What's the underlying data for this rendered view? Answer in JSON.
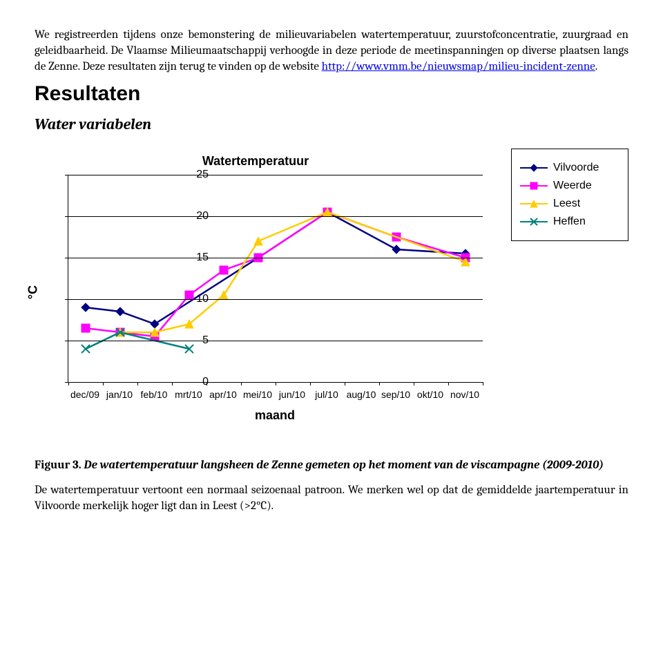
{
  "para1": "We registreerden tijdens onze bemonstering de milieuvariabelen watertemperatuur, zuurstofconcentratie, zuurgraad en geleidbaarheid. De Vlaamse Milieumaatschappij verhoogde in deze periode de meetinspanningen op diverse plaatsen langs de Zenne. Deze resultaten zijn terug te vinden op de website ",
  "para1_site_prefix": "Deze resultaten zijn terug te vinden op de website",
  "link_text": "http://www.vmm.be/nieuwsmap/milieu-incident-zenne",
  "section_title": "Resultaten",
  "subsection": "Water variabelen",
  "chart": {
    "title": "Watertemperatuur",
    "y_title": "°C",
    "x_title": "maand",
    "ylim": [
      0,
      25
    ],
    "ytick_step": 5,
    "grid_color": "#000000",
    "categories": [
      "dec/09",
      "jan/10",
      "feb/10",
      "mrt/10",
      "apr/10",
      "mei/10",
      "jun/10",
      "jul/10",
      "aug/10",
      "sep/10",
      "okt/10",
      "nov/10"
    ],
    "series": [
      {
        "name": "Vilvoorde",
        "color": "#000080",
        "marker": "diamond",
        "values": [
          9,
          8.5,
          7,
          null,
          null,
          15,
          null,
          20.5,
          null,
          16,
          null,
          15.5
        ]
      },
      {
        "name": "Weerde",
        "color": "#ff00ff",
        "marker": "square",
        "values": [
          6.5,
          6,
          5.5,
          10.5,
          13.5,
          15,
          null,
          20.5,
          null,
          17.5,
          null,
          15
        ]
      },
      {
        "name": "Leest",
        "color": "#ffcc00",
        "marker": "triangle",
        "values": [
          null,
          6,
          6,
          7,
          10.5,
          17,
          null,
          20.5,
          null,
          null,
          null,
          14.5
        ]
      },
      {
        "name": "Heffen",
        "color": "#008080",
        "marker": "x",
        "values": [
          4,
          6,
          null,
          4,
          null,
          null,
          null,
          null,
          null,
          null,
          null,
          null
        ]
      }
    ]
  },
  "caption_label": "Figuur 3.",
  "caption_text": " De watertemperatuur langsheen de Zenne gemeten op het moment van de viscampagne (2009-2010)",
  "para_last": "De watertemperatuur vertoont een normaal seizoenaal patroon. We merken wel op dat de gemiddelde jaartemperatuur in Vilvoorde merkelijk hoger ligt dan in Leest (>2°C)."
}
